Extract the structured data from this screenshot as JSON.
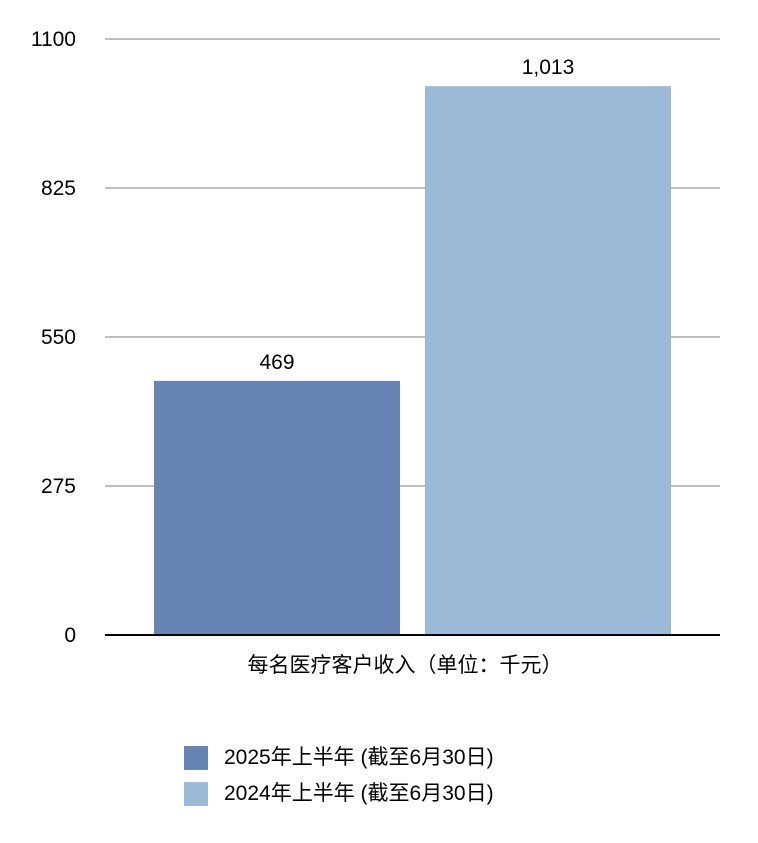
{
  "chart_data": {
    "type": "bar",
    "categories": [
      "2025年上半年 (截至6月30日)",
      "2024年上半年 (截至6月30日)"
    ],
    "values": [
      469,
      1013
    ],
    "value_labels": [
      "469",
      "1,013"
    ],
    "colors": [
      "#6784b5",
      "#9db9d8"
    ],
    "title": "",
    "xlabel": "每名医疗客户收入（单位：千元）",
    "ylabel": "",
    "ylim": [
      0,
      1100
    ],
    "yticks": [
      0,
      275,
      550,
      825,
      1100
    ],
    "ytick_labels": [
      "0",
      "275",
      "550",
      "825",
      "1100"
    ],
    "grid": true,
    "legend": "bottom"
  }
}
